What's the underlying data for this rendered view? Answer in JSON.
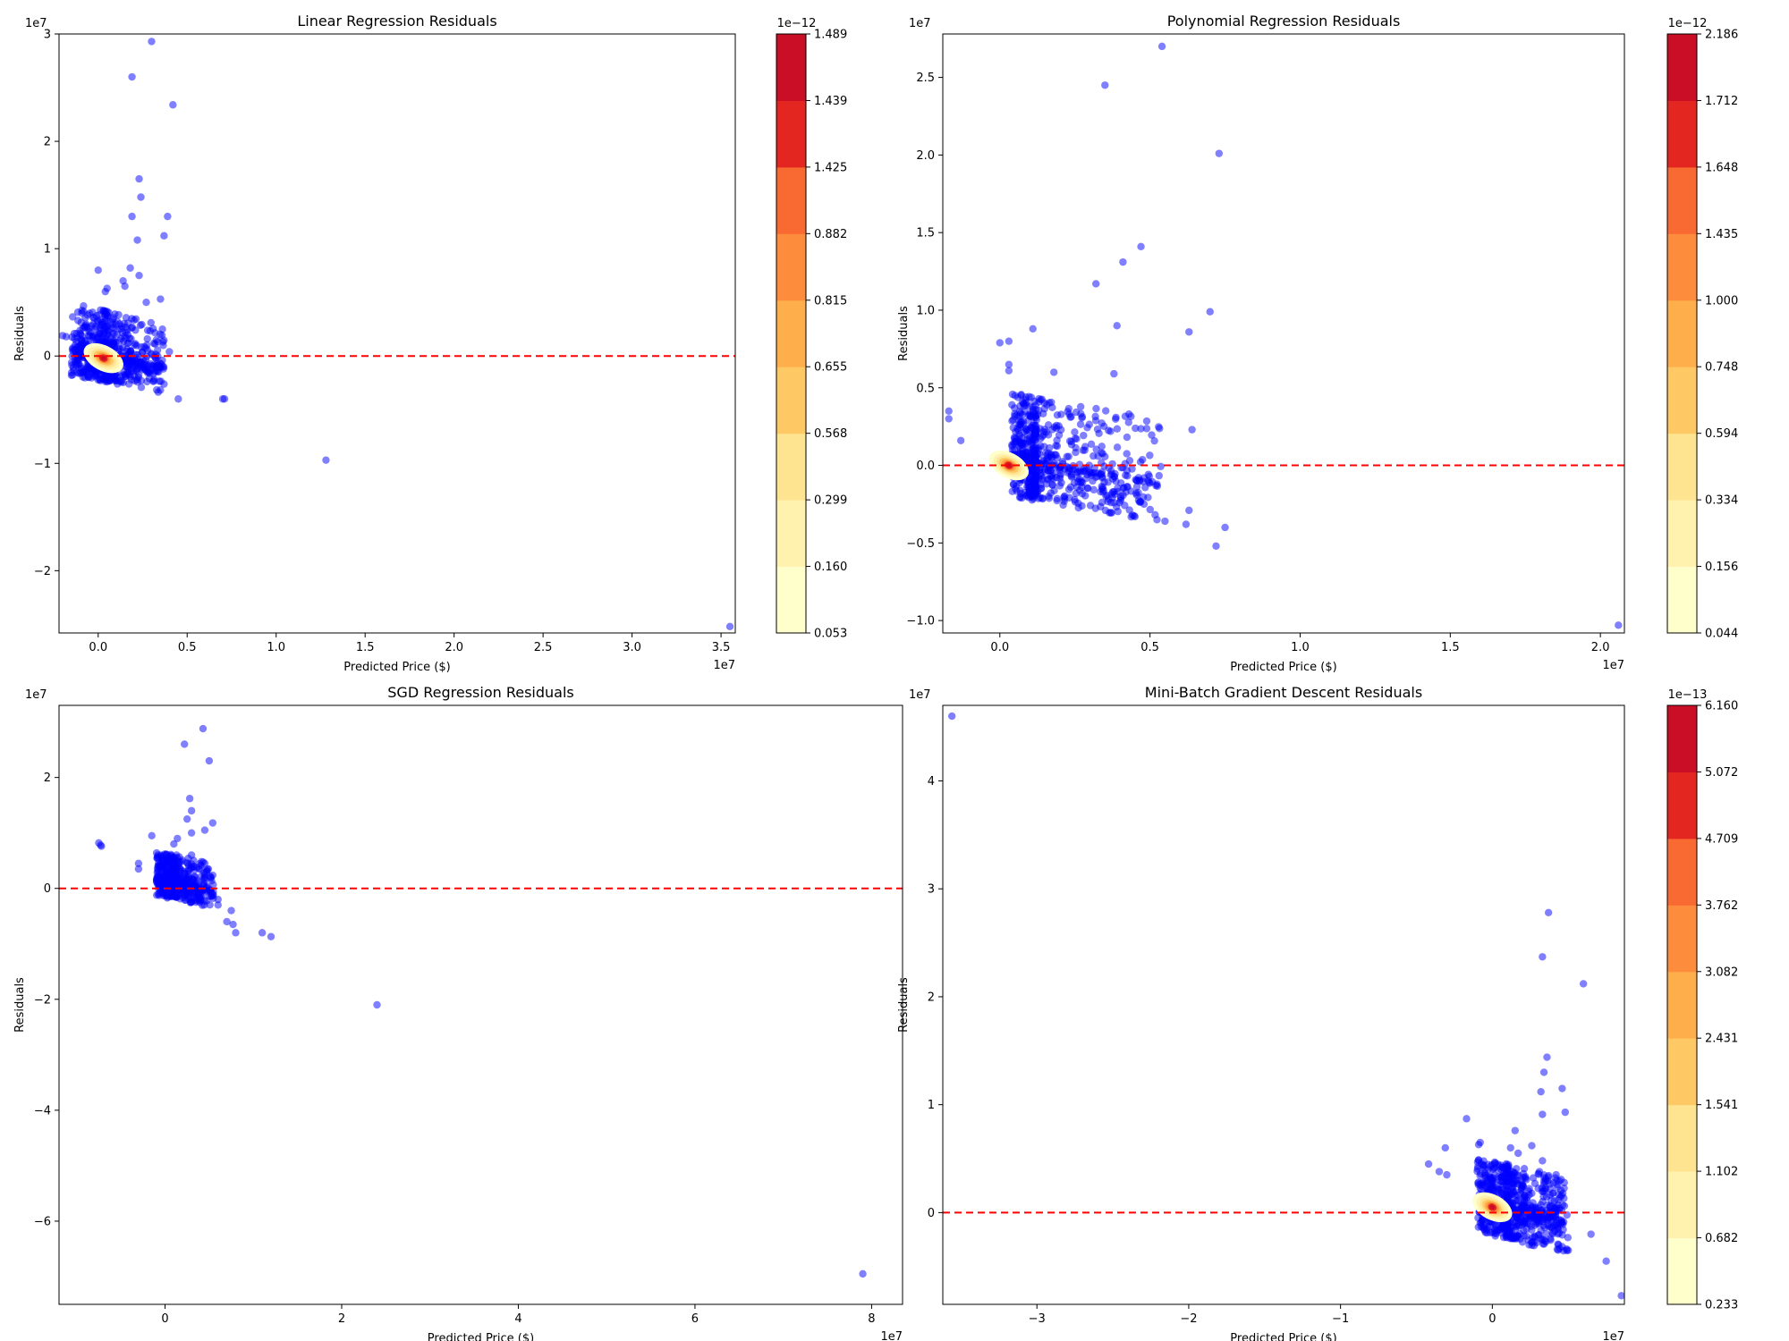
{
  "chart_data": [
    {
      "type": "scatter",
      "title": "Linear Regression Residuals",
      "xlabel": "Predicted Price ($)",
      "ylabel": "Residuals",
      "x_multiplier": "1e7",
      "y_multiplier": "1e7",
      "xlim": [
        -0.22,
        3.58
      ],
      "ylim": [
        -2.58,
        3.0
      ],
      "xticks": [
        0.0,
        0.5,
        1.0,
        1.5,
        2.0,
        2.5,
        3.0,
        3.5
      ],
      "xtick_labels": [
        "0.0",
        "0.5",
        "1.0",
        "1.5",
        "2.0",
        "2.5",
        "3.0",
        "3.5"
      ],
      "yticks": [
        -2,
        -1,
        0,
        1,
        2,
        3
      ],
      "ytick_labels": [
        "−2",
        "−1",
        "0",
        "1",
        "2",
        "3"
      ],
      "zero_line": 0,
      "point_color": "#0000ff",
      "cluster": {
        "center": [
          0.05,
          0.0
        ],
        "x_spread": [
          -0.2,
          0.32
        ],
        "y_spread": [
          -0.25,
          0.42
        ],
        "count": 700
      },
      "density_center": [
        0.03,
        -0.02
      ],
      "outliers": [
        [
          0.3,
          2.93
        ],
        [
          0.19,
          2.6
        ],
        [
          0.42,
          2.34
        ],
        [
          0.23,
          1.65
        ],
        [
          0.24,
          1.48
        ],
        [
          0.19,
          1.3
        ],
        [
          0.39,
          1.3
        ],
        [
          0.22,
          1.08
        ],
        [
          0.37,
          1.12
        ],
        [
          0.0,
          0.8
        ],
        [
          0.18,
          0.82
        ],
        [
          0.23,
          0.75
        ],
        [
          0.14,
          0.7
        ],
        [
          0.15,
          0.65
        ],
        [
          0.05,
          0.63
        ],
        [
          0.04,
          0.6
        ],
        [
          0.35,
          0.53
        ],
        [
          0.27,
          0.5
        ],
        [
          -0.2,
          0.19
        ],
        [
          -0.18,
          0.18
        ],
        [
          -0.12,
          0.21
        ],
        [
          -0.08,
          0.08
        ],
        [
          0.4,
          0.04
        ],
        [
          0.36,
          -0.04
        ],
        [
          0.45,
          -0.4
        ],
        [
          0.7,
          -0.4
        ],
        [
          0.71,
          -0.4
        ],
        [
          1.28,
          -0.97
        ],
        [
          3.55,
          -2.52
        ]
      ],
      "colorbar": {
        "multiplier": "1e−12",
        "labels": [
          "0.053",
          "0.160",
          "0.299",
          "0.568",
          "0.655",
          "0.815",
          "0.882",
          "1.425",
          "1.439",
          "1.489"
        ]
      }
    },
    {
      "type": "scatter",
      "title": "Polynomial Regression Residuals",
      "xlabel": "Predicted Price ($)",
      "ylabel": "Residuals",
      "x_multiplier": "1e7",
      "y_multiplier": "1e7",
      "xlim": [
        -0.19,
        2.08
      ],
      "ylim": [
        -1.08,
        2.78
      ],
      "xticks": [
        0.0,
        0.5,
        1.0,
        1.5,
        2.0
      ],
      "xtick_labels": [
        "0.0",
        "0.5",
        "1.0",
        "1.5",
        "2.0"
      ],
      "yticks": [
        -1.0,
        -0.5,
        0.0,
        0.5,
        1.0,
        1.5,
        2.0,
        2.5
      ],
      "ytick_labels": [
        "−1.0",
        "−0.5",
        "0.0",
        "0.5",
        "1.0",
        "1.5",
        "2.0",
        "2.5"
      ],
      "zero_line": 0,
      "point_color": "#0000ff",
      "cluster": {
        "center": [
          0.12,
          0.02
        ],
        "x_spread": [
          -0.08,
          0.42
        ],
        "y_spread": [
          -0.25,
          0.42
        ],
        "count": 750
      },
      "density_center": [
        0.03,
        0.0
      ],
      "outliers": [
        [
          0.54,
          2.7
        ],
        [
          0.35,
          2.45
        ],
        [
          0.73,
          2.01
        ],
        [
          0.47,
          1.41
        ],
        [
          0.32,
          1.17
        ],
        [
          0.41,
          1.31
        ],
        [
          0.7,
          0.99
        ],
        [
          0.39,
          0.9
        ],
        [
          0.11,
          0.88
        ],
        [
          0.63,
          0.86
        ],
        [
          0.03,
          0.8
        ],
        [
          0.0,
          0.79
        ],
        [
          0.38,
          0.59
        ],
        [
          0.03,
          0.65
        ],
        [
          0.03,
          0.61
        ],
        [
          0.18,
          0.6
        ],
        [
          0.43,
          0.33
        ],
        [
          0.64,
          0.23
        ],
        [
          -0.17,
          0.35
        ],
        [
          -0.17,
          0.3
        ],
        [
          -0.13,
          0.16
        ],
        [
          0.55,
          -0.36
        ],
        [
          0.63,
          -0.29
        ],
        [
          0.62,
          -0.38
        ],
        [
          0.72,
          -0.52
        ],
        [
          0.75,
          -0.4
        ],
        [
          0.45,
          -0.33
        ],
        [
          0.48,
          -0.25
        ],
        [
          0.52,
          -0.13
        ],
        [
          2.06,
          -1.03
        ]
      ],
      "colorbar": {
        "multiplier": "1e−12",
        "labels": [
          "0.044",
          "0.156",
          "0.334",
          "0.594",
          "0.748",
          "1.000",
          "1.435",
          "1.648",
          "1.712",
          "2.186"
        ]
      }
    },
    {
      "type": "scatter",
      "title": "SGD Regression Residuals",
      "xlabel": "Predicted Price ($)",
      "ylabel": "Residuals",
      "x_multiplier": "1e7",
      "y_multiplier": "1e7",
      "xlim": [
        -1.2,
        8.35
      ],
      "ylim": [
        -7.5,
        3.3
      ],
      "xticks": [
        0,
        2,
        4,
        6,
        8
      ],
      "xtick_labels": [
        "0",
        "2",
        "4",
        "6",
        "8"
      ],
      "yticks": [
        -6,
        -4,
        -2,
        0,
        2
      ],
      "ytick_labels": [
        "−6",
        "−4",
        "−2",
        "0",
        "2"
      ],
      "zero_line": 0,
      "point_color": "#0000ff",
      "cluster": {
        "center": [
          0.1,
          0.1
        ],
        "x_spread": [
          -0.2,
          0.45
        ],
        "y_spread": [
          -0.3,
          0.5
        ],
        "count": 550
      },
      "density_center": null,
      "outliers": [
        [
          0.43,
          2.88
        ],
        [
          0.22,
          2.6
        ],
        [
          0.5,
          2.3
        ],
        [
          0.28,
          1.62
        ],
        [
          0.3,
          1.4
        ],
        [
          0.54,
          1.18
        ],
        [
          0.25,
          1.25
        ],
        [
          0.45,
          1.05
        ],
        [
          0.3,
          1.0
        ],
        [
          0.14,
          0.9
        ],
        [
          0.1,
          0.8
        ],
        [
          -0.15,
          0.95
        ],
        [
          -0.75,
          0.82
        ],
        [
          -0.73,
          0.78
        ],
        [
          -0.72,
          0.76
        ],
        [
          0.3,
          0.6
        ],
        [
          0.13,
          0.6
        ],
        [
          0.45,
          0.45
        ],
        [
          -0.3,
          0.45
        ],
        [
          -0.3,
          0.35
        ],
        [
          0.6,
          -0.2
        ],
        [
          0.6,
          -0.3
        ],
        [
          0.7,
          -0.6
        ],
        [
          0.77,
          -0.65
        ],
        [
          0.75,
          -0.4
        ],
        [
          0.8,
          -0.8
        ],
        [
          1.1,
          -0.8
        ],
        [
          1.2,
          -0.87
        ],
        [
          2.4,
          -2.1
        ],
        [
          7.9,
          -6.95
        ]
      ],
      "colorbar": null
    },
    {
      "type": "scatter",
      "title": "Mini-Batch Gradient Descent Residuals",
      "xlabel": "Predicted Price ($)",
      "ylabel": "Residuals",
      "x_multiplier": "1e7",
      "y_multiplier": "1e7",
      "xlim": [
        -3.62,
        0.87
      ],
      "ylim": [
        -0.85,
        4.7
      ],
      "xticks": [
        -3,
        -2,
        -1,
        0
      ],
      "xtick_labels": [
        "−3",
        "−2",
        "−1",
        "0"
      ],
      "yticks": [
        0,
        1,
        2,
        3,
        4
      ],
      "ytick_labels": [
        "0",
        "1",
        "2",
        "3",
        "4"
      ],
      "zero_line": 0,
      "point_color": "#0000ff",
      "cluster": {
        "center": [
          0.1,
          0.05
        ],
        "x_spread": [
          -0.2,
          0.4
        ],
        "y_spread": [
          -0.3,
          0.4
        ],
        "count": 800
      },
      "density_center": [
        0.0,
        0.05
      ],
      "outliers": [
        [
          -3.56,
          4.6
        ],
        [
          0.37,
          2.78
        ],
        [
          0.33,
          2.37
        ],
        [
          0.6,
          2.12
        ],
        [
          0.36,
          1.44
        ],
        [
          0.34,
          1.3
        ],
        [
          0.46,
          1.15
        ],
        [
          0.32,
          1.12
        ],
        [
          0.48,
          0.93
        ],
        [
          0.33,
          0.91
        ],
        [
          -0.17,
          0.87
        ],
        [
          0.15,
          0.76
        ],
        [
          0.26,
          0.62
        ],
        [
          -0.08,
          0.65
        ],
        [
          -0.09,
          0.63
        ],
        [
          0.12,
          0.6
        ],
        [
          0.17,
          0.55
        ],
        [
          0.33,
          0.48
        ],
        [
          -0.42,
          0.45
        ],
        [
          -0.31,
          0.6
        ],
        [
          -0.35,
          0.38
        ],
        [
          -0.3,
          0.35
        ],
        [
          0.31,
          0.38
        ],
        [
          0.42,
          0.35
        ],
        [
          0.5,
          -0.35
        ],
        [
          0.65,
          -0.2
        ],
        [
          0.75,
          -0.45
        ],
        [
          0.85,
          -0.77
        ]
      ],
      "colorbar": {
        "multiplier": "1e−13",
        "labels": [
          "0.233",
          "0.682",
          "1.102",
          "1.541",
          "2.431",
          "3.082",
          "3.762",
          "4.709",
          "5.072",
          "6.160"
        ]
      }
    }
  ],
  "colors": {
    "points": "#0000ff",
    "zero_line": "#ff0000",
    "colorbar": [
      "#ffffcc",
      "#fff2af",
      "#fee391",
      "#fec965",
      "#feae4a",
      "#fd8d3c",
      "#f86a31",
      "#e3261f",
      "#c90e26",
      "#a10026"
    ]
  }
}
